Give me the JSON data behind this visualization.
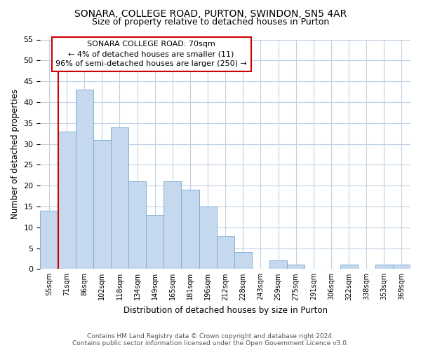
{
  "title": "SONARA, COLLEGE ROAD, PURTON, SWINDON, SN5 4AR",
  "subtitle": "Size of property relative to detached houses in Purton",
  "xlabel": "Distribution of detached houses by size in Purton",
  "ylabel": "Number of detached properties",
  "bin_labels": [
    "55sqm",
    "71sqm",
    "86sqm",
    "102sqm",
    "118sqm",
    "134sqm",
    "149sqm",
    "165sqm",
    "181sqm",
    "196sqm",
    "212sqm",
    "228sqm",
    "243sqm",
    "259sqm",
    "275sqm",
    "291sqm",
    "306sqm",
    "322sqm",
    "338sqm",
    "353sqm",
    "369sqm"
  ],
  "bar_values": [
    14,
    33,
    43,
    31,
    34,
    21,
    13,
    21,
    19,
    15,
    8,
    4,
    0,
    2,
    1,
    0,
    0,
    1,
    0,
    1,
    1
  ],
  "bar_color": "#c5d8ed",
  "bar_edge_color": "#7fb2d8",
  "ylim": [
    0,
    55
  ],
  "yticks": [
    0,
    5,
    10,
    15,
    20,
    25,
    30,
    35,
    40,
    45,
    50,
    55
  ],
  "vline_x": 0.5,
  "vline_color": "#cc0000",
  "annotation_title": "SONARA COLLEGE ROAD: 70sqm",
  "annotation_line1": "← 4% of detached houses are smaller (11)",
  "annotation_line2": "96% of semi-detached houses are larger (250) →",
  "annotation_box_color": "#ffffff",
  "annotation_box_edge": "#cc0000",
  "footer_line1": "Contains HM Land Registry data © Crown copyright and database right 2024.",
  "footer_line2": "Contains public sector information licensed under the Open Government Licence v3.0.",
  "background_color": "#ffffff",
  "grid_color": "#c0d0e0"
}
